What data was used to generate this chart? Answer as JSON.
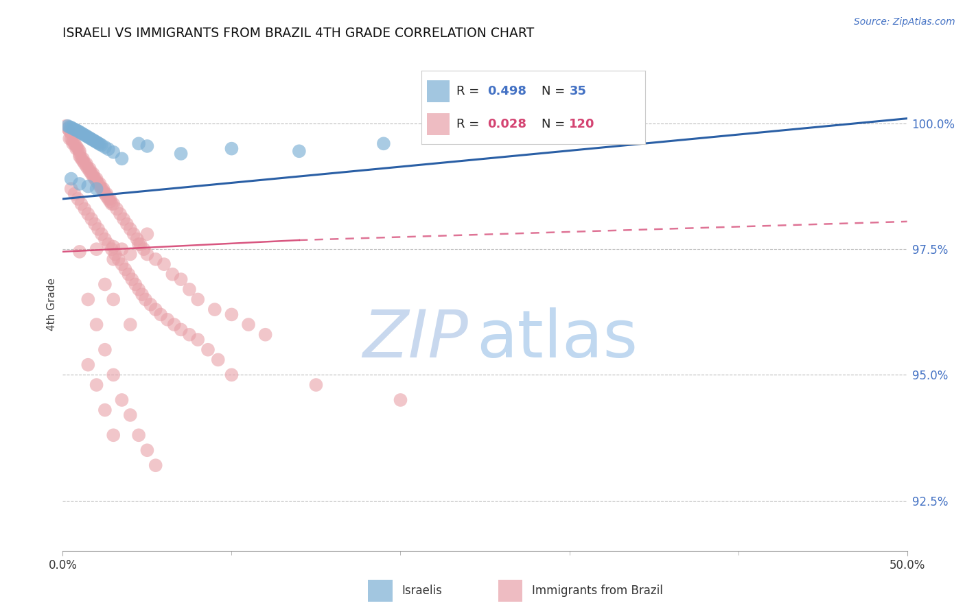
{
  "title": "ISRAELI VS IMMIGRANTS FROM BRAZIL 4TH GRADE CORRELATION CHART",
  "source": "Source: ZipAtlas.com",
  "ylabel": "4th Grade",
  "x_min": 0.0,
  "x_max": 50.0,
  "y_min": 91.5,
  "y_max": 101.3,
  "yticks": [
    92.5,
    95.0,
    97.5,
    100.0
  ],
  "ytick_labels": [
    "92.5%",
    "95.0%",
    "97.5%",
    "100.0%"
  ],
  "israeli_color": "#7bafd4",
  "brazil_color": "#e8a0a8",
  "israeli_line_color": "#2a5fa5",
  "brazil_line_color": "#d44472",
  "watermark_zip_color": "#c8d8ee",
  "watermark_atlas_color": "#c0d8f0",
  "israeli_line": [
    0.0,
    98.5,
    50.0,
    100.1
  ],
  "brazil_line_solid": [
    0.0,
    97.45,
    14.0,
    97.68
  ],
  "brazil_line_dashed": [
    14.0,
    97.68,
    50.0,
    98.05
  ],
  "israeli_points": [
    [
      0.3,
      99.95
    ],
    [
      0.4,
      99.93
    ],
    [
      0.5,
      99.92
    ],
    [
      0.6,
      99.9
    ],
    [
      0.7,
      99.88
    ],
    [
      0.8,
      99.87
    ],
    [
      0.9,
      99.85
    ],
    [
      1.0,
      99.83
    ],
    [
      1.1,
      99.81
    ],
    [
      1.2,
      99.79
    ],
    [
      1.3,
      99.77
    ],
    [
      1.4,
      99.75
    ],
    [
      1.5,
      99.73
    ],
    [
      1.6,
      99.71
    ],
    [
      1.7,
      99.69
    ],
    [
      1.8,
      99.67
    ],
    [
      1.9,
      99.65
    ],
    [
      2.0,
      99.63
    ],
    [
      2.1,
      99.61
    ],
    [
      2.2,
      99.59
    ],
    [
      2.3,
      99.57
    ],
    [
      2.5,
      99.53
    ],
    [
      2.7,
      99.49
    ],
    [
      3.0,
      99.43
    ],
    [
      0.5,
      98.9
    ],
    [
      1.0,
      98.8
    ],
    [
      1.5,
      98.75
    ],
    [
      2.0,
      98.7
    ],
    [
      3.5,
      99.3
    ],
    [
      4.5,
      99.6
    ],
    [
      5.0,
      99.55
    ],
    [
      7.0,
      99.4
    ],
    [
      10.0,
      99.5
    ],
    [
      14.0,
      99.45
    ],
    [
      19.0,
      99.6
    ]
  ],
  "brazil_points": [
    [
      0.2,
      99.95
    ],
    [
      0.3,
      99.9
    ],
    [
      0.4,
      99.85
    ],
    [
      0.5,
      99.8
    ],
    [
      0.5,
      99.7
    ],
    [
      0.6,
      99.65
    ],
    [
      0.7,
      99.6
    ],
    [
      0.8,
      99.55
    ],
    [
      0.9,
      99.5
    ],
    [
      1.0,
      99.45
    ],
    [
      1.0,
      99.35
    ],
    [
      1.1,
      99.3
    ],
    [
      1.2,
      99.25
    ],
    [
      1.3,
      99.2
    ],
    [
      1.4,
      99.15
    ],
    [
      1.5,
      99.1
    ],
    [
      1.6,
      99.05
    ],
    [
      1.7,
      99.0
    ],
    [
      1.8,
      98.95
    ],
    [
      1.9,
      98.9
    ],
    [
      2.0,
      98.85
    ],
    [
      2.1,
      98.8
    ],
    [
      2.2,
      98.75
    ],
    [
      2.3,
      98.7
    ],
    [
      2.4,
      98.65
    ],
    [
      2.5,
      98.6
    ],
    [
      2.6,
      98.55
    ],
    [
      2.7,
      98.5
    ],
    [
      2.8,
      98.45
    ],
    [
      2.9,
      98.4
    ],
    [
      0.4,
      99.7
    ],
    [
      0.6,
      99.6
    ],
    [
      0.8,
      99.5
    ],
    [
      1.0,
      99.4
    ],
    [
      1.2,
      99.3
    ],
    [
      1.4,
      99.2
    ],
    [
      1.6,
      99.1
    ],
    [
      1.8,
      99.0
    ],
    [
      2.0,
      98.9
    ],
    [
      2.2,
      98.8
    ],
    [
      2.4,
      98.7
    ],
    [
      2.6,
      98.6
    ],
    [
      2.8,
      98.5
    ],
    [
      3.0,
      98.4
    ],
    [
      3.2,
      98.3
    ],
    [
      3.4,
      98.2
    ],
    [
      3.6,
      98.1
    ],
    [
      3.8,
      98.0
    ],
    [
      4.0,
      97.9
    ],
    [
      4.2,
      97.8
    ],
    [
      4.4,
      97.7
    ],
    [
      4.6,
      97.6
    ],
    [
      4.8,
      97.5
    ],
    [
      5.0,
      97.4
    ],
    [
      0.5,
      98.7
    ],
    [
      0.7,
      98.6
    ],
    [
      0.9,
      98.5
    ],
    [
      1.1,
      98.4
    ],
    [
      1.3,
      98.3
    ],
    [
      1.5,
      98.2
    ],
    [
      1.7,
      98.1
    ],
    [
      1.9,
      98.0
    ],
    [
      2.1,
      97.9
    ],
    [
      2.3,
      97.8
    ],
    [
      2.5,
      97.7
    ],
    [
      2.7,
      97.6
    ],
    [
      2.9,
      97.5
    ],
    [
      3.1,
      97.4
    ],
    [
      3.3,
      97.3
    ],
    [
      3.5,
      97.2
    ],
    [
      3.7,
      97.1
    ],
    [
      3.9,
      97.0
    ],
    [
      4.1,
      96.9
    ],
    [
      4.3,
      96.8
    ],
    [
      4.5,
      96.7
    ],
    [
      4.7,
      96.6
    ],
    [
      4.9,
      96.5
    ],
    [
      5.2,
      96.4
    ],
    [
      5.5,
      96.3
    ],
    [
      5.8,
      96.2
    ],
    [
      6.2,
      96.1
    ],
    [
      6.6,
      96.0
    ],
    [
      7.0,
      95.9
    ],
    [
      7.5,
      95.8
    ],
    [
      8.0,
      95.7
    ],
    [
      8.6,
      95.5
    ],
    [
      9.2,
      95.3
    ],
    [
      3.0,
      97.3
    ],
    [
      3.5,
      97.5
    ],
    [
      4.0,
      97.4
    ],
    [
      4.5,
      97.6
    ],
    [
      5.0,
      97.8
    ],
    [
      5.5,
      97.3
    ],
    [
      6.0,
      97.2
    ],
    [
      6.5,
      97.0
    ],
    [
      7.0,
      96.9
    ],
    [
      7.5,
      96.7
    ],
    [
      8.0,
      96.5
    ],
    [
      9.0,
      96.3
    ],
    [
      10.0,
      96.2
    ],
    [
      11.0,
      96.0
    ],
    [
      12.0,
      95.8
    ],
    [
      1.5,
      96.5
    ],
    [
      2.0,
      96.0
    ],
    [
      2.5,
      95.5
    ],
    [
      3.0,
      95.0
    ],
    [
      3.5,
      94.5
    ],
    [
      4.0,
      94.2
    ],
    [
      4.5,
      93.8
    ],
    [
      5.0,
      93.5
    ],
    [
      5.5,
      93.2
    ],
    [
      2.0,
      94.8
    ],
    [
      2.5,
      94.3
    ],
    [
      3.0,
      93.8
    ],
    [
      1.5,
      95.2
    ],
    [
      2.5,
      96.8
    ],
    [
      3.0,
      96.5
    ],
    [
      4.0,
      96.0
    ],
    [
      10.0,
      95.0
    ],
    [
      15.0,
      94.8
    ],
    [
      20.0,
      94.5
    ],
    [
      1.0,
      97.45
    ],
    [
      2.0,
      97.5
    ],
    [
      3.0,
      97.55
    ]
  ]
}
